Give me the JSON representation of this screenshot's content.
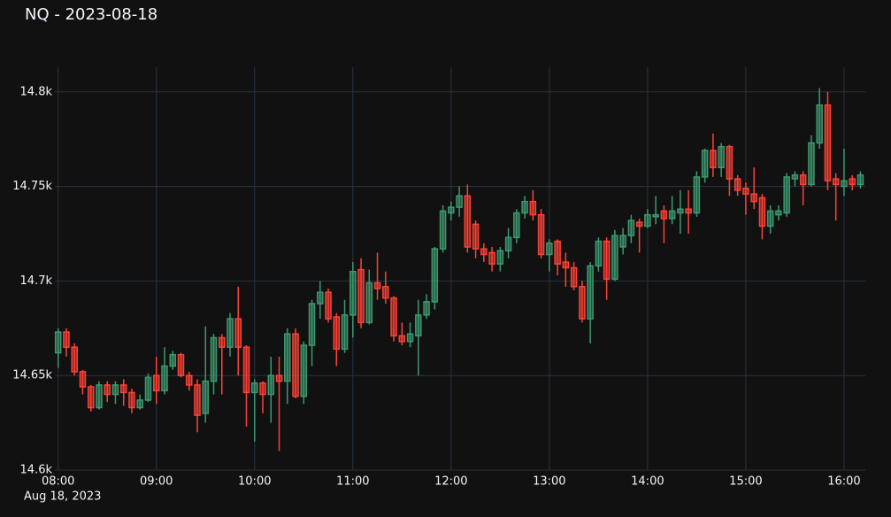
{
  "chart_data": {
    "type": "candlestick",
    "title": "NQ - 2023-08-18",
    "x_date_label": "Aug 18, 2023",
    "x": [
      "08:00",
      "08:05",
      "08:10",
      "08:15",
      "08:20",
      "08:25",
      "08:30",
      "08:35",
      "08:40",
      "08:45",
      "08:50",
      "08:55",
      "09:00",
      "09:05",
      "09:10",
      "09:15",
      "09:20",
      "09:25",
      "09:30",
      "09:35",
      "09:40",
      "09:45",
      "09:50",
      "09:55",
      "10:00",
      "10:05",
      "10:10",
      "10:15",
      "10:20",
      "10:25",
      "10:30",
      "10:35",
      "10:40",
      "10:45",
      "10:50",
      "10:55",
      "11:00",
      "11:05",
      "11:10",
      "11:15",
      "11:20",
      "11:25",
      "11:30",
      "11:35",
      "11:40",
      "11:45",
      "11:50",
      "11:55",
      "12:00",
      "12:05",
      "12:10",
      "12:15",
      "12:20",
      "12:25",
      "12:30",
      "12:35",
      "12:40",
      "12:45",
      "12:50",
      "12:55",
      "13:00",
      "13:05",
      "13:10",
      "13:15",
      "13:20",
      "13:25",
      "13:30",
      "13:35",
      "13:40",
      "13:45",
      "13:50",
      "13:55",
      "14:00",
      "14:05",
      "14:10",
      "14:15",
      "14:20",
      "14:25",
      "14:30",
      "14:35",
      "14:40",
      "14:45",
      "14:50",
      "14:55",
      "15:00",
      "15:05",
      "15:10",
      "15:15",
      "15:20",
      "15:25",
      "15:30",
      "15:35",
      "15:40",
      "15:45",
      "15:50",
      "15:55",
      "16:00",
      "16:05",
      "16:10"
    ],
    "open": [
      14662,
      14673,
      14665,
      14652,
      14644,
      14633,
      14645,
      14640,
      14645,
      14641,
      14633,
      14637,
      14650,
      14642,
      14655,
      14661,
      14650,
      14645,
      14630,
      14647,
      14670,
      14665,
      14680,
      14665,
      14641,
      14646,
      14640,
      14650,
      14647,
      14672,
      14639,
      14666,
      14688,
      14694,
      14681,
      14664,
      14682,
      14706,
      14678,
      14699,
      14697,
      14691,
      14671,
      14668,
      14671,
      14682,
      14689,
      14717,
      14736,
      14739,
      14745,
      14730,
      14717,
      14715,
      14709,
      14716,
      14723,
      14736,
      14742,
      14735,
      14714,
      14721,
      14710,
      14707,
      14697,
      14680,
      14708,
      14721,
      14701,
      14718,
      14724,
      14731,
      14729,
      14734,
      14737,
      14733,
      14736,
      14738,
      14736,
      14755,
      14769,
      14760,
      14771,
      14754,
      14749,
      14746,
      14744,
      14729,
      14735,
      14736,
      14754,
      14756,
      14751,
      14773,
      14793,
      14754,
      14750,
      14754,
      14751
    ],
    "high": [
      14675,
      14675,
      14667,
      14653,
      14645,
      14647,
      14647,
      14647,
      14648,
      14643,
      14640,
      14651,
      14660,
      14665,
      14663,
      14662,
      14652,
      14648,
      14676,
      14672,
      14672,
      14683,
      14697,
      14666,
      14648,
      14647,
      14660,
      14660,
      14675,
      14675,
      14668,
      14690,
      14700,
      14696,
      14683,
      14690,
      14710,
      14712,
      14706,
      14715,
      14705,
      14692,
      14678,
      14678,
      14690,
      14693,
      14718,
      14740,
      14742,
      14750,
      14751,
      14732,
      14720,
      14718,
      14718,
      14728,
      14738,
      14745,
      14748,
      14738,
      14722,
      14722,
      14715,
      14710,
      14700,
      14710,
      14723,
      14723,
      14727,
      14728,
      14735,
      14733,
      14738,
      14745,
      14740,
      14745,
      14748,
      14748,
      14758,
      14770,
      14778,
      14773,
      14772,
      14756,
      14752,
      14760,
      14746,
      14740,
      14740,
      14757,
      14758,
      14758,
      14777,
      14802,
      14800,
      14757,
      14770,
      14756,
      14758
    ],
    "low": [
      14654,
      14660,
      14650,
      14640,
      14631,
      14632,
      14636,
      14635,
      14634,
      14630,
      14632,
      14636,
      14635,
      14640,
      14653,
      14649,
      14642,
      14620,
      14625,
      14640,
      14640,
      14660,
      14650,
      14623,
      14615,
      14630,
      14625,
      14610,
      14635,
      14638,
      14635,
      14655,
      14680,
      14678,
      14655,
      14662,
      14670,
      14675,
      14677,
      14690,
      14688,
      14668,
      14666,
      14665,
      14650,
      14680,
      14685,
      14715,
      14732,
      14734,
      14715,
      14712,
      14710,
      14705,
      14705,
      14712,
      14720,
      14733,
      14732,
      14712,
      14705,
      14703,
      14697,
      14695,
      14678,
      14667,
      14705,
      14690,
      14700,
      14714,
      14720,
      14715,
      14728,
      14730,
      14720,
      14730,
      14725,
      14725,
      14734,
      14752,
      14755,
      14755,
      14745,
      14745,
      14735,
      14738,
      14722,
      14725,
      14732,
      14734,
      14750,
      14740,
      14750,
      14770,
      14748,
      14732,
      14745,
      14748,
      14749
    ],
    "close": [
      14673,
      14665,
      14652,
      14644,
      14633,
      14645,
      14640,
      14645,
      14641,
      14633,
      14637,
      14649,
      14642,
      14655,
      14661,
      14650,
      14645,
      14629,
      14647,
      14670,
      14665,
      14680,
      14665,
      14641,
      14646,
      14640,
      14650,
      14647,
      14672,
      14639,
      14666,
      14688,
      14694,
      14680,
      14664,
      14682,
      14705,
      14678,
      14699,
      14696,
      14691,
      14671,
      14668,
      14672,
      14682,
      14689,
      14717,
      14737,
      14739,
      14745,
      14718,
      14717,
      14714,
      14709,
      14716,
      14723,
      14736,
      14742,
      14735,
      14714,
      14720,
      14709,
      14707,
      14697,
      14680,
      14708,
      14721,
      14701,
      14724,
      14724,
      14732,
      14729,
      14735,
      14735,
      14733,
      14737,
      14738,
      14736,
      14755,
      14769,
      14760,
      14771,
      14754,
      14748,
      14746,
      14742,
      14729,
      14737,
      14737,
      14755,
      14756,
      14751,
      14773,
      14793,
      14753,
      14751,
      14753,
      14751,
      14756
    ],
    "increasing_color": "#3d9970",
    "decreasing_color": "#ff4136",
    "xlim": [
      "07:58",
      "16:13"
    ],
    "xticks": [
      "08:00",
      "09:00",
      "10:00",
      "11:00",
      "12:00",
      "13:00",
      "14:00",
      "15:00",
      "16:00"
    ],
    "ylim": [
      14600,
      14813
    ],
    "yticks": [
      {
        "value": 14600,
        "label": "14.6k"
      },
      {
        "value": 14650,
        "label": "14.65k"
      },
      {
        "value": 14700,
        "label": "14.7k"
      },
      {
        "value": 14750,
        "label": "14.75k"
      },
      {
        "value": 14800,
        "label": "14.8k"
      }
    ],
    "grid": true
  }
}
